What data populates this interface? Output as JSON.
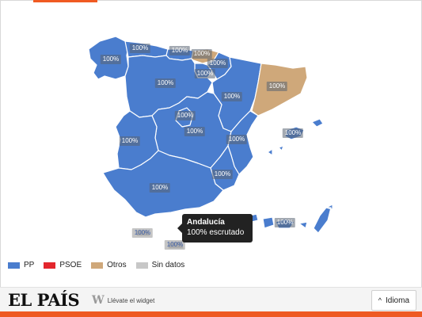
{
  "map": {
    "colors": {
      "pp": "#4a7dce",
      "psoe": "#e3262d",
      "otros": "#cfa87a",
      "sin_datos": "#c7c7c7"
    },
    "region_labels": {
      "galicia": "100%",
      "asturias": "100%",
      "cantabria": "100%",
      "pais_vasco": "100%",
      "navarra": "100%",
      "la_rioja": "100%",
      "castilla_leon": "100%",
      "aragon": "100%",
      "cataluna": "100%",
      "madrid": "100%",
      "castilla_la_mancha": "100%",
      "comunidad_valenciana": "100%",
      "extremadura": "100%",
      "murcia": "100%",
      "andalucia": "100%",
      "baleares": "100%",
      "canarias": "100%",
      "ceuta": "100%",
      "melilla": "100%"
    }
  },
  "tooltip": {
    "region": "Andalucía",
    "status": "100% escrutado"
  },
  "legend": [
    {
      "label": "PP",
      "color": "#4a7dce"
    },
    {
      "label": "PSOE",
      "color": "#e3262d"
    },
    {
      "label": "Otros",
      "color": "#cfa87a"
    },
    {
      "label": "Sin datos",
      "color": "#c7c7c7"
    }
  ],
  "footer": {
    "logo": "EL PAÍS",
    "widget_text": "Llévate el widget",
    "lang_button": "Idioma"
  }
}
